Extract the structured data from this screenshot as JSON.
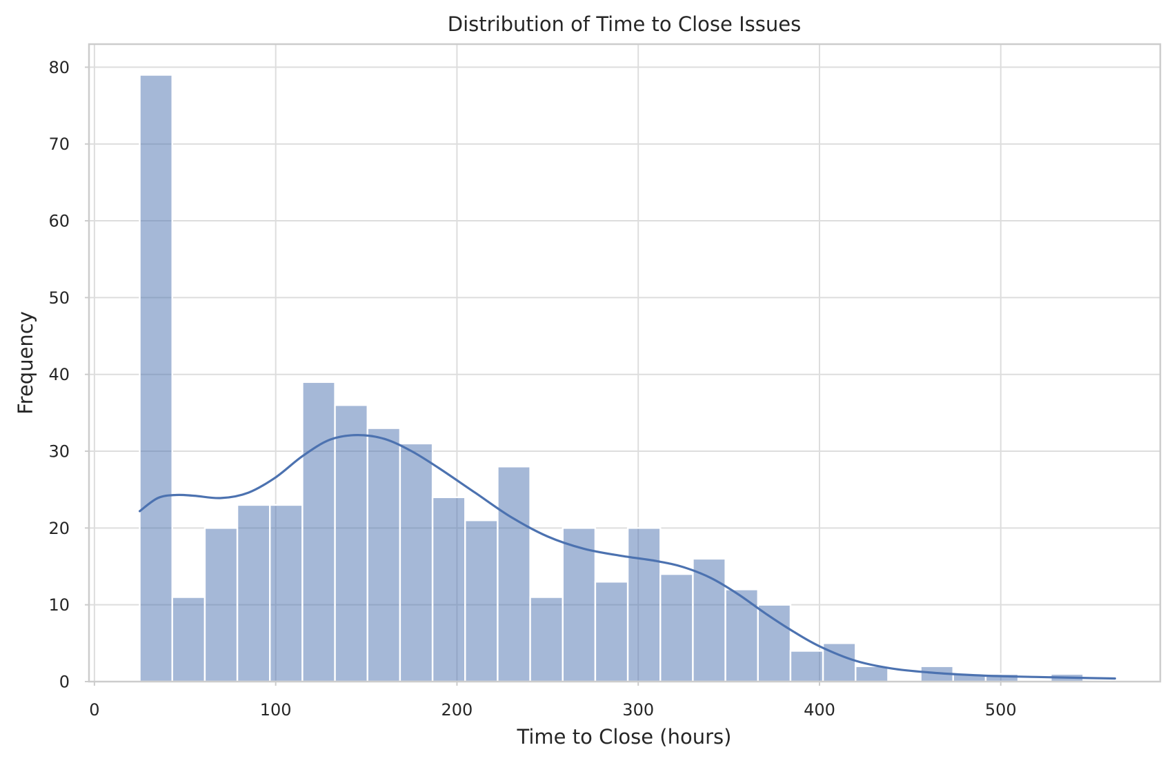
{
  "chart_data": {
    "type": "bar",
    "title": "Distribution of Time to Close Issues",
    "xlabel": "Time to Close (hours)",
    "ylabel": "Frequency",
    "xlim": [
      -3,
      588
    ],
    "ylim": [
      0,
      83
    ],
    "xticks": [
      0,
      100,
      200,
      300,
      400,
      500
    ],
    "yticks": [
      0,
      10,
      20,
      30,
      40,
      50,
      60,
      70,
      80
    ],
    "grid": true,
    "bin_start": 25,
    "bin_width": 17.95,
    "values": [
      79,
      11,
      20,
      23,
      23,
      39,
      36,
      33,
      31,
      24,
      21,
      28,
      11,
      20,
      13,
      20,
      14,
      16,
      12,
      10,
      4,
      5,
      2,
      0,
      2,
      1,
      1,
      0,
      1
    ],
    "kde_x": [
      25,
      35,
      45,
      55,
      70,
      85,
      100,
      115,
      130,
      145,
      160,
      175,
      190,
      210,
      230,
      250,
      270,
      290,
      310,
      325,
      340,
      355,
      370,
      385,
      400,
      420,
      440,
      460,
      480,
      500,
      520,
      540,
      563
    ],
    "kde_y": [
      22.2,
      23.9,
      24.3,
      24.2,
      23.9,
      24.6,
      26.6,
      29.4,
      31.5,
      32.1,
      31.6,
      30.0,
      27.8,
      24.6,
      21.4,
      18.9,
      17.3,
      16.4,
      15.7,
      14.9,
      13.5,
      11.4,
      8.9,
      6.6,
      4.6,
      2.7,
      1.7,
      1.2,
      0.9,
      0.7,
      0.6,
      0.5,
      0.4
    ],
    "colors": {
      "bar": "#4c72b0",
      "kde": "#4c72b0",
      "grid": "#dddddd",
      "frame": "#cccccc"
    }
  }
}
